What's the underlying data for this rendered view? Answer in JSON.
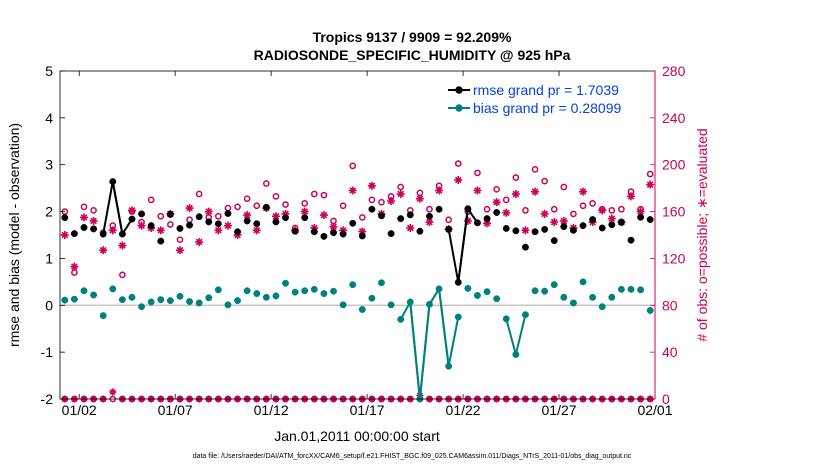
{
  "colors": {
    "rmse": "#000000",
    "bias": "#007f7f",
    "obs": "#cc0055",
    "zero": "#bbbbbb",
    "legend_text": "#0044dd"
  },
  "chart_data": {
    "type": "line",
    "title": "Tropics 9137 / 9909 = 92.209%",
    "subtitle": "RADIOSONDE_SPECIFIC_HUMIDITY @ 925 hPa",
    "xlabel": "Jan.01,2011 00:00:00 start",
    "ylabel": "rmse and bias (model - observation)",
    "ylabel_right": "# of obs: o=possible; ∗=evaluated",
    "footnote": "data file: /Users/raeder/DAI/ATM_forcXX/CAM6_setup/f.e21.FHIST_BGC.f09_025.CAM6assim.011/Diags_NTrS_2011-01/obs_diag_output.nc",
    "xlim": [
      0.5,
      31.5
    ],
    "ylim": [
      -2,
      5
    ],
    "ylim_right": [
      0,
      280
    ],
    "x_ticks": [
      1.5,
      6.5,
      11.5,
      16.5,
      21.5,
      26.5,
      31.5
    ],
    "x_tick_labels": [
      "01/02",
      "01/07",
      "01/12",
      "01/17",
      "01/22",
      "01/27",
      "02/01"
    ],
    "y_ticks": [
      -2,
      -1,
      0,
      1,
      2,
      3,
      4,
      5
    ],
    "y_ticks_right": [
      0,
      40,
      80,
      120,
      160,
      200,
      240,
      280
    ],
    "x": [
      0.75,
      1.25,
      1.75,
      2.25,
      2.75,
      3.25,
      3.75,
      4.25,
      4.75,
      5.25,
      5.75,
      6.25,
      6.75,
      7.25,
      7.75,
      8.25,
      8.75,
      9.25,
      9.75,
      10.25,
      10.75,
      11.25,
      11.75,
      12.25,
      12.75,
      13.25,
      13.75,
      14.25,
      14.75,
      15.25,
      15.75,
      16.25,
      16.75,
      17.25,
      17.75,
      18.25,
      18.75,
      19.25,
      19.75,
      20.25,
      20.75,
      21.25,
      21.75,
      22.25,
      22.75,
      23.25,
      23.75,
      24.25,
      24.75,
      25.25,
      25.75,
      26.25,
      26.75,
      27.25,
      27.75,
      28.25,
      28.75,
      29.25,
      29.75,
      30.25,
      30.75,
      31.25
    ],
    "series": [
      {
        "name": "rmse grand pr = 1.7039",
        "values": [
          1.87,
          1.53,
          1.66,
          1.63,
          1.52,
          2.64,
          1.52,
          1.84,
          1.95,
          1.7,
          1.37,
          1.94,
          1.64,
          1.71,
          1.89,
          1.78,
          1.74,
          1.96,
          1.57,
          1.8,
          1.74,
          2.09,
          1.78,
          1.87,
          1.58,
          1.87,
          1.57,
          1.47,
          1.55,
          1.52,
          1.75,
          1.48,
          2.05,
          1.91,
          1.53,
          1.85,
          1.93,
          1.58,
          1.9,
          2.05,
          1.62,
          0.49,
          2.06,
          1.76,
          1.85,
          1.98,
          1.64,
          1.59,
          1.24,
          1.57,
          1.62,
          1.38,
          1.68,
          1.6,
          1.7,
          1.83,
          1.65,
          1.72,
          1.77,
          1.39,
          1.88,
          1.83
        ]
      },
      {
        "name": "bias grand pr = 0.28099",
        "values": [
          0.11,
          0.13,
          0.31,
          0.22,
          -0.22,
          0.35,
          0.12,
          0.17,
          -0.03,
          0.07,
          0.12,
          0.1,
          0.19,
          0.08,
          0.05,
          0.16,
          0.33,
          0.01,
          0.1,
          0.31,
          0.25,
          0.17,
          0.2,
          0.47,
          0.28,
          0.31,
          0.34,
          0.25,
          0.3,
          0.01,
          0.44,
          -0.09,
          0.15,
          0.48,
          0.01,
          -0.3,
          0.07,
          -2.0,
          0.02,
          0.35,
          -1.3,
          -0.25,
          0.36,
          0.21,
          0.29,
          0.14,
          -0.29,
          -1.05,
          -0.2,
          0.31,
          0.3,
          0.44,
          0.17,
          0.05,
          0.5,
          0.17,
          -0.03,
          0.17,
          0.34,
          0.34,
          0.33,
          -0.11
        ]
      }
    ],
    "obs_possible": [
      160,
      108,
      164,
      161,
      142,
      148,
      106,
      160,
      151,
      170,
      156,
      149,
      136,
      153,
      175,
      155,
      156,
      163,
      164,
      171,
      165,
      184,
      173,
      166,
      146,
      167,
      175,
      174,
      152,
      165,
      199,
      155,
      170,
      168,
      173,
      181,
      161,
      176,
      162,
      182,
      153,
      201,
      160,
      193,
      162,
      179,
      170,
      189,
      161,
      196,
      186,
      162,
      181,
      158,
      165,
      167,
      162,
      161,
      162,
      177,
      162,
      192
    ],
    "obs_evaluated": [
      140,
      113,
      155,
      152,
      127,
      144,
      131,
      161,
      148,
      146,
      144,
      158,
      127,
      163,
      134,
      160,
      144,
      148,
      140,
      157,
      144,
      163,
      156,
      158,
      144,
      160,
      146,
      157,
      147,
      144,
      178,
      143,
      182,
      158,
      169,
      175,
      146,
      171,
      151,
      178,
      145,
      187,
      152,
      178,
      150,
      168,
      159,
      175,
      144,
      177,
      158,
      151,
      152,
      146,
      177,
      151,
      161,
      154,
      151,
      173,
      160,
      183
    ],
    "rejected_bottom": [
      0,
      0,
      0,
      0,
      0,
      6,
      0,
      0,
      0,
      0,
      0,
      0,
      0,
      0,
      0,
      0,
      0,
      0,
      0,
      0,
      0,
      0,
      0,
      0,
      0,
      0,
      0,
      0,
      0,
      0,
      0,
      0,
      0,
      0,
      0,
      0,
      0,
      3,
      0,
      0,
      0,
      0,
      0,
      0,
      0,
      0,
      0,
      0,
      0,
      0,
      0,
      0,
      0,
      0,
      0,
      0,
      0,
      0,
      0,
      0,
      0,
      0
    ],
    "legend_location": "top-right"
  }
}
